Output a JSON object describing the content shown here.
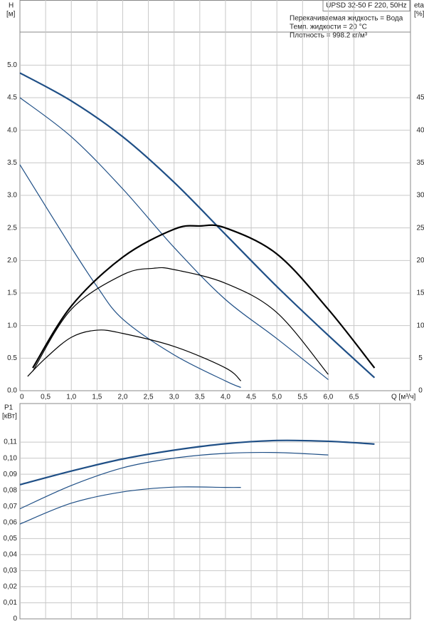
{
  "chart_data": [
    {
      "type": "line",
      "title": "UPSD 32-50 F 220, 50Hz",
      "annotations": [
        "Перекачиваемая жидкость = Вода",
        "Темп. жидкости = 20 °C",
        "Плотность = 998.2 кг/м³"
      ],
      "ylabel": "H",
      "yunit": "[м]",
      "y2label": "eta",
      "y2unit": "[%]",
      "xlabel": "Q [м³/ч]",
      "xlim": [
        0,
        7.6
      ],
      "xticks": [
        0,
        {
          "value": 0.5,
          "label": "0,5"
        },
        {
          "value": 1,
          "label": "1,0"
        },
        {
          "value": 1.5,
          "label": "1,5"
        },
        {
          "value": 2,
          "label": "2,0"
        },
        {
          "value": 2.5,
          "label": "2,5"
        },
        {
          "value": 3,
          "label": "3,0"
        },
        {
          "value": 3.5,
          "label": "3,5"
        },
        {
          "value": 4,
          "label": "4,0"
        },
        {
          "value": 4.5,
          "label": "4,5"
        },
        {
          "value": 5,
          "label": "5,0"
        },
        {
          "value": 5.5,
          "label": "5,5"
        },
        {
          "value": 6,
          "label": "6,0"
        },
        {
          "value": 6.5,
          "label": "6,5"
        }
      ],
      "ylim": [
        0,
        6
      ],
      "yticks": [
        {
          "value": 0,
          "label": "0.0"
        },
        {
          "value": 0.5,
          "label": "0.5"
        },
        {
          "value": 1,
          "label": "1.0"
        },
        {
          "value": 1.5,
          "label": "1.5"
        },
        {
          "value": 2,
          "label": "2.0"
        },
        {
          "value": 2.5,
          "label": "2.5"
        },
        {
          "value": 3,
          "label": "3.0"
        },
        {
          "value": 3.5,
          "label": "3.5"
        },
        {
          "value": 4,
          "label": "4.0"
        },
        {
          "value": 4.5,
          "label": "4.5"
        },
        {
          "value": 5,
          "label": "5.0"
        }
      ],
      "y2lim": [
        0,
        60
      ],
      "y2ticks": [
        0,
        5,
        10,
        15,
        20,
        25,
        30,
        35,
        40,
        45
      ],
      "grid": true,
      "series": [
        {
          "color": "#1f4f86",
          "width": 2.2,
          "axis": "y",
          "x": [
            0,
            1,
            2,
            3,
            4,
            5,
            6,
            6.9
          ],
          "values": [
            4.88,
            4.45,
            3.9,
            3.2,
            2.4,
            1.6,
            0.85,
            0.2
          ]
        },
        {
          "color": "#1f4f86",
          "width": 1.2,
          "axis": "y",
          "x": [
            0,
            1,
            2,
            3,
            4,
            5,
            6
          ],
          "values": [
            4.5,
            3.9,
            3.1,
            2.2,
            1.4,
            0.8,
            0.17
          ]
        },
        {
          "color": "#1f4f86",
          "width": 1.2,
          "axis": "y",
          "x": [
            0,
            1,
            1.5,
            2,
            3,
            4,
            4.3
          ],
          "values": [
            3.47,
            2.2,
            1.6,
            1.1,
            0.55,
            0.15,
            0.05
          ]
        },
        {
          "color": "#000000",
          "width": 2.2,
          "axis": "y2",
          "x": [
            0.25,
            1,
            2,
            3,
            3.5,
            4,
            5,
            6,
            6.9
          ],
          "values": [
            3.5,
            13,
            20.5,
            24.8,
            25.3,
            25,
            21,
            12.5,
            3.5
          ]
        },
        {
          "color": "#000000",
          "width": 1.2,
          "axis": "y2",
          "x": [
            0.25,
            1,
            2,
            2.6,
            3,
            4,
            5,
            6
          ],
          "values": [
            3,
            12.5,
            17.8,
            18.8,
            18.6,
            16.5,
            12,
            2.5
          ]
        },
        {
          "color": "#000000",
          "width": 1.2,
          "axis": "y2",
          "x": [
            0.15,
            0.5,
            1,
            1.5,
            2,
            3,
            4,
            4.3
          ],
          "values": [
            2.2,
            5,
            8.2,
            9.3,
            8.8,
            6.8,
            3.5,
            1.5
          ]
        }
      ]
    },
    {
      "type": "line",
      "ylabel": "P1",
      "yunit": "[кВт]",
      "xlim": [
        0,
        7.6
      ],
      "xticks": [
        0,
        0.5,
        1,
        1.5,
        2,
        2.5,
        3,
        3.5,
        4,
        4.5,
        5,
        5.5,
        6,
        6.5,
        7
      ],
      "ylim": [
        0,
        0.134
      ],
      "yticks": [
        0,
        {
          "value": 0.01,
          "label": "0,01"
        },
        {
          "value": 0.02,
          "label": "0,02"
        },
        {
          "value": 0.03,
          "label": "0,03"
        },
        {
          "value": 0.04,
          "label": "0,04"
        },
        {
          "value": 0.05,
          "label": "0,05"
        },
        {
          "value": 0.06,
          "label": "0,06"
        },
        {
          "value": 0.07,
          "label": "0,07"
        },
        {
          "value": 0.08,
          "label": "0,08"
        },
        {
          "value": 0.09,
          "label": "0,09"
        },
        {
          "value": 0.1,
          "label": "0,10"
        },
        {
          "value": 0.11,
          "label": "0,11"
        }
      ],
      "grid": true,
      "series": [
        {
          "color": "#1f4f86",
          "width": 2.2,
          "x": [
            0,
            1,
            2,
            3,
            4,
            5,
            6,
            6.9
          ],
          "values": [
            0.0835,
            0.092,
            0.0995,
            0.105,
            0.109,
            0.111,
            0.1105,
            0.1088
          ]
        },
        {
          "color": "#1f4f86",
          "width": 1.2,
          "x": [
            0,
            1,
            2,
            3,
            4,
            5,
            6
          ],
          "values": [
            0.0685,
            0.083,
            0.094,
            0.1,
            0.103,
            0.1035,
            0.102
          ]
        },
        {
          "color": "#1f4f86",
          "width": 1.2,
          "x": [
            0,
            1,
            2,
            3,
            4,
            4.3
          ],
          "values": [
            0.059,
            0.072,
            0.079,
            0.082,
            0.0818,
            0.0818
          ]
        }
      ]
    }
  ]
}
